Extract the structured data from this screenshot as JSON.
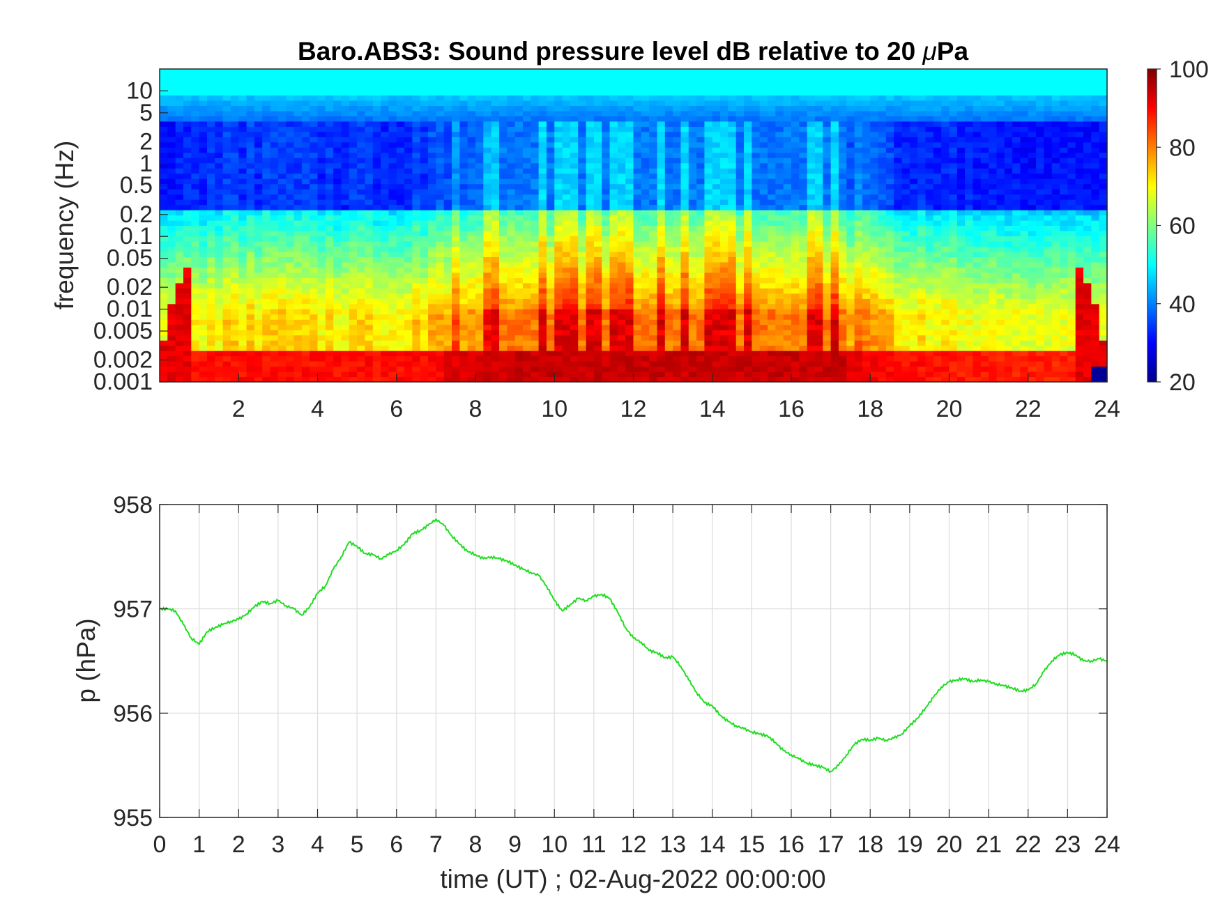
{
  "chart_data": [
    {
      "type": "heatmap",
      "title_main": "Baro.ABS3: Sound pressure level dB relative to 20 ",
      "title_mu": "μ",
      "title_unit": "Pa",
      "ylabel": "frequency (Hz)",
      "y_scale": "log",
      "ylim": [
        0.001,
        20
      ],
      "xlim": [
        0,
        24
      ],
      "x_ticks": [
        2,
        4,
        6,
        8,
        10,
        12,
        14,
        16,
        18,
        20,
        22,
        24
      ],
      "y_ticks": [
        {
          "value": 10,
          "label": "10"
        },
        {
          "value": 5,
          "label": "5"
        },
        {
          "value": 2,
          "label": "2"
        },
        {
          "value": 1,
          "label": "1"
        },
        {
          "value": 0.5,
          "label": "0.5"
        },
        {
          "value": 0.2,
          "label": "0.2"
        },
        {
          "value": 0.1,
          "label": "0.1"
        },
        {
          "value": 0.05,
          "label": "0.05"
        },
        {
          "value": 0.02,
          "label": "0.02"
        },
        {
          "value": 0.01,
          "label": "0.01"
        },
        {
          "value": 0.005,
          "label": "0.005"
        },
        {
          "value": 0.002,
          "label": "0.002"
        },
        {
          "value": 0.001,
          "label": "0.001"
        }
      ],
      "colorbar": {
        "colormap": "jet",
        "range": [
          20,
          100
        ],
        "ticks": [
          20,
          40,
          60,
          80,
          100
        ]
      },
      "grid": false
    },
    {
      "type": "line",
      "xlabel": "time (UT) ; 02-Aug-2022 00:00:00",
      "ylabel": "p (hPa)",
      "xlim": [
        0,
        24
      ],
      "ylim": [
        955,
        958
      ],
      "x_ticks": [
        0,
        1,
        2,
        3,
        4,
        5,
        6,
        7,
        8,
        9,
        10,
        11,
        12,
        13,
        14,
        15,
        16,
        17,
        18,
        19,
        20,
        21,
        22,
        23,
        24
      ],
      "y_ticks": [
        955,
        956,
        957,
        958
      ],
      "grid": true,
      "line_color": "#1fdd1f",
      "series": [
        {
          "x": [
            0,
            0.2,
            0.4,
            0.6,
            0.8,
            1.0,
            1.2,
            1.4,
            1.6,
            1.8,
            2.0,
            2.2,
            2.4,
            2.6,
            2.8,
            3.0,
            3.2,
            3.4,
            3.6,
            3.8,
            4.0,
            4.2,
            4.4,
            4.6,
            4.8,
            5.0,
            5.2,
            5.4,
            5.6,
            5.8,
            6.0,
            6.2,
            6.4,
            6.6,
            6.8,
            7.0,
            7.2,
            7.4,
            7.6,
            7.8,
            8.0,
            8.2,
            8.4,
            8.6,
            8.8,
            9.0,
            9.2,
            9.4,
            9.6,
            9.8,
            10.0,
            10.2,
            10.4,
            10.6,
            10.8,
            11.0,
            11.2,
            11.4,
            11.6,
            11.8,
            12.0,
            12.2,
            12.4,
            12.6,
            12.8,
            13.0,
            13.2,
            13.4,
            13.6,
            13.8,
            14.0,
            14.2,
            14.4,
            14.6,
            14.8,
            15.0,
            15.2,
            15.4,
            15.6,
            15.8,
            16.0,
            16.2,
            16.4,
            16.6,
            16.8,
            17.0,
            17.2,
            17.4,
            17.6,
            17.8,
            18.0,
            18.2,
            18.4,
            18.6,
            18.8,
            19.0,
            19.2,
            19.4,
            19.6,
            19.8,
            20.0,
            20.2,
            20.4,
            20.6,
            20.8,
            21.0,
            21.2,
            21.4,
            21.6,
            21.8,
            22.0,
            22.2,
            22.4,
            22.6,
            22.8,
            23.0,
            23.2,
            23.4,
            23.6,
            23.8,
            24.0
          ],
          "y": [
            957.0,
            957.0,
            956.98,
            956.85,
            956.72,
            956.66,
            956.78,
            956.82,
            956.85,
            956.88,
            956.9,
            956.95,
            957.02,
            957.07,
            957.05,
            957.08,
            957.03,
            957.0,
            956.94,
            957.02,
            957.15,
            957.22,
            957.38,
            957.5,
            957.64,
            957.6,
            957.53,
            957.52,
            957.48,
            957.52,
            957.56,
            957.62,
            957.72,
            957.75,
            957.8,
            957.86,
            957.8,
            957.7,
            957.62,
            957.55,
            957.52,
            957.48,
            957.5,
            957.48,
            957.46,
            957.42,
            957.38,
            957.35,
            957.32,
            957.22,
            957.08,
            956.98,
            957.04,
            957.1,
            957.08,
            957.12,
            957.14,
            957.1,
            956.97,
            956.82,
            956.72,
            956.68,
            956.6,
            956.58,
            956.53,
            956.54,
            956.45,
            956.32,
            956.2,
            956.1,
            956.07,
            955.98,
            955.92,
            955.88,
            955.85,
            955.82,
            955.8,
            955.78,
            955.72,
            955.64,
            955.6,
            955.56,
            955.52,
            955.5,
            955.48,
            955.44,
            955.5,
            955.6,
            955.7,
            955.75,
            955.74,
            955.76,
            955.74,
            955.76,
            955.8,
            955.88,
            955.95,
            956.05,
            956.15,
            956.25,
            956.3,
            956.32,
            956.33,
            956.3,
            956.32,
            956.3,
            956.28,
            956.26,
            956.24,
            956.21,
            956.22,
            956.28,
            956.4,
            956.5,
            956.56,
            956.58,
            956.56,
            956.5,
            956.5,
            956.52,
            956.5
          ]
        }
      ]
    }
  ]
}
